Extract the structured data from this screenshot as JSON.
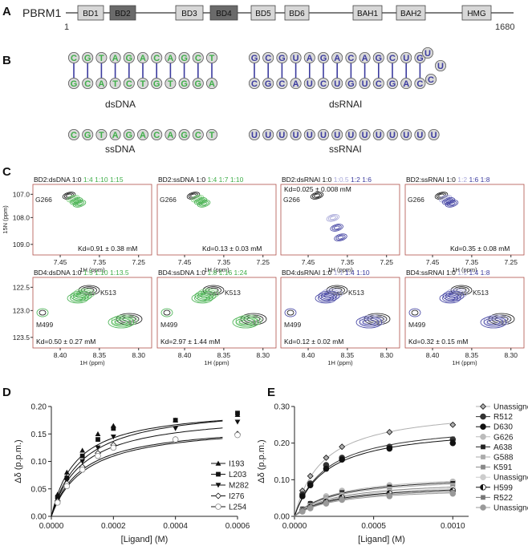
{
  "colors": {
    "domain_light": "#d7d7d7",
    "domain_dark": "#6a6a6a",
    "dna_green": "#3fae49",
    "rna_blue": "#3b3b9e",
    "rna_light": "#a6a6d8",
    "nt_fill": "#d9d9d9",
    "frame_red": "#b0504a"
  },
  "panel_labels": [
    "A",
    "B",
    "C",
    "D",
    "E"
  ],
  "panelA": {
    "protein": "PBRM1",
    "start": "1",
    "end": "1680",
    "domains": [
      {
        "label": "BD1",
        "dark": false
      },
      {
        "label": "BD2",
        "dark": true
      },
      {
        "label": "BD3",
        "dark": false
      },
      {
        "label": "BD4",
        "dark": true
      },
      {
        "label": "BD5",
        "dark": false
      },
      {
        "label": "BD6",
        "dark": false
      },
      {
        "label": "BAH1",
        "dark": false
      },
      {
        "label": "BAH2",
        "dark": false
      },
      {
        "label": "HMG",
        "dark": false
      }
    ]
  },
  "panelB": {
    "dsDNA_top": [
      "C",
      "G",
      "T",
      "A",
      "G",
      "A",
      "C",
      "A",
      "G",
      "C",
      "T"
    ],
    "dsDNA_bottom": [
      "G",
      "C",
      "A",
      "T",
      "C",
      "T",
      "G",
      "T",
      "G",
      "G",
      "A"
    ],
    "dsRNA_top": [
      "G",
      "C",
      "G",
      "U",
      "A",
      "G",
      "A",
      "C",
      "A",
      "G",
      "C",
      "U",
      "G"
    ],
    "dsRNA_bottom": [
      "C",
      "G",
      "C",
      "A",
      "U",
      "C",
      "U",
      "G",
      "U",
      "C",
      "G",
      "A",
      "C"
    ],
    "loop": [
      "U",
      "U",
      "C"
    ],
    "ssDNA": [
      "C",
      "G",
      "T",
      "A",
      "G",
      "A",
      "C",
      "A",
      "G",
      "C",
      "T"
    ],
    "ssRNA": [
      "U",
      "U",
      "U",
      "U",
      "U",
      "U",
      "U",
      "U",
      "U",
      "U",
      "U",
      "U",
      "U",
      "U"
    ],
    "label_dsDNA": "dsDNA",
    "label_dsRNAI": "dsRNAI",
    "label_ssDNA": "ssDNA",
    "label_ssRNAI": "ssRNAI"
  },
  "panelC": {
    "row1": {
      "ylabel": "15N (ppm)",
      "yticks": [
        "107.0",
        "108.0",
        "109.0"
      ],
      "xticks": [
        "7.45",
        "7.35",
        "7.25"
      ],
      "xlabel": "1H (ppm)",
      "peak": "G266",
      "spectra": [
        {
          "title": "BD2:dsDNA",
          "ratios": [
            "1:0",
            "1:4",
            "1:10",
            "1:15"
          ],
          "kd": "Kd=0.91 ± 0.38 mM",
          "kind": "dna"
        },
        {
          "title": "BD2:ssDNA",
          "ratios": [
            "1:0",
            "1:4",
            "1:7",
            "1:10"
          ],
          "kd": "Kd=0.13 ± 0.03 mM",
          "kind": "dna"
        },
        {
          "title": "BD2:dsRNAI",
          "ratios": [
            "1:0",
            "1:0.5",
            "1:2",
            "1:6"
          ],
          "kd": "Kd=0.025 ± 0.008 mM",
          "kind": "rna"
        },
        {
          "title": "BD2:ssRNAI",
          "ratios": [
            "1:0",
            "1:2",
            "1:6",
            "1:8"
          ],
          "kd": "Kd=0.35 ± 0.08 mM",
          "kind": "rna"
        }
      ]
    },
    "row2": {
      "yticks": [
        "122.5",
        "123.0",
        "123.5"
      ],
      "xticks": [
        "8.40",
        "8.35",
        "8.30"
      ],
      "xlabel": "1H (ppm)",
      "peak1": "K513",
      "peak2": "M499",
      "spectra": [
        {
          "title": "BD4:dsDNA",
          "ratios": [
            "1:0",
            "1:5",
            "1:10",
            "1:13.5"
          ],
          "kd": "Kd=0.50 ± 0.27 mM",
          "kind": "dna"
        },
        {
          "title": "BD4:ssDNA",
          "ratios": [
            "1:0",
            "1:8",
            "1:16",
            "1:24"
          ],
          "kd": "Kd=2.97 ± 1.44 mM",
          "kind": "dna"
        },
        {
          "title": "BD4:dsRNAI",
          "ratios": [
            "1:0",
            "1:1",
            "1:4",
            "1:10"
          ],
          "kd": "Kd=0.12 ± 0.02 mM",
          "kind": "rna"
        },
        {
          "title": "BD4:ssRNAI",
          "ratios": [
            "1:0",
            "1:1",
            "1:4",
            "1:8"
          ],
          "kd": "Kd=0.32 ± 0.15 mM",
          "kind": "rna"
        }
      ]
    }
  },
  "chart_data": [
    {
      "type": "scatter",
      "panel": "D",
      "xlabel": "[Ligand] (M)",
      "ylabel": "Δδ (p.p.m.)",
      "xlim": [
        0,
        0.0006
      ],
      "ylim": [
        0,
        0.2
      ],
      "xticks": [
        "0.0000",
        "0.0002",
        "0.0004",
        "0.0006"
      ],
      "yticks": [
        "0.00",
        "0.05",
        "0.10",
        "0.15",
        "0.20"
      ],
      "x": [
        2e-05,
        5e-05,
        0.0001,
        0.00015,
        0.0002,
        0.0004,
        0.0006
      ],
      "series": [
        {
          "name": "I193",
          "marker": "triangle-up",
          "dmax": 0.2,
          "kd": 8e-05,
          "values": [
            0.04,
            0.08,
            0.12,
            0.15,
            0.165,
            0.175,
            0.185
          ]
        },
        {
          "name": "L203",
          "marker": "square",
          "dmax": 0.205,
          "kd": 0.0001,
          "values": [
            0.035,
            0.07,
            0.11,
            0.14,
            0.16,
            0.175,
            0.188
          ]
        },
        {
          "name": "M282",
          "marker": "triangle-down",
          "dmax": 0.19,
          "kd": 0.0001,
          "values": [
            0.03,
            0.065,
            0.1,
            0.125,
            0.145,
            0.16,
            0.172
          ]
        },
        {
          "name": "I276",
          "marker": "diamond",
          "dmax": 0.17,
          "kd": 0.0001,
          "values": [
            0.028,
            0.06,
            0.09,
            0.115,
            0.13,
            0.14,
            0.15
          ]
        },
        {
          "name": "L254",
          "marker": "circle",
          "dmax": 0.17,
          "kd": 0.00011,
          "values": [
            0.025,
            0.055,
            0.085,
            0.11,
            0.125,
            0.14,
            0.148
          ]
        }
      ]
    },
    {
      "type": "scatter",
      "panel": "E",
      "xlabel": "[Ligand] (M)",
      "ylabel": "Δδ (p.p.m.)",
      "xlim": [
        0,
        0.0011
      ],
      "ylim": [
        0,
        0.3
      ],
      "xticks": [
        "0.0000",
        "0.0005",
        "0.0010"
      ],
      "yticks": [
        "0.00",
        "0.10",
        "0.20",
        "0.30"
      ],
      "x": [
        5e-05,
        0.0001,
        0.0002,
        0.0003,
        0.0006,
        0.001
      ],
      "series": [
        {
          "name": "Unassigned",
          "marker": "diamond",
          "color": "#b0b0b0",
          "dmax": 0.3,
          "kd": 0.00018,
          "values": [
            0.07,
            0.11,
            0.16,
            0.19,
            0.23,
            0.25
          ]
        },
        {
          "name": "R512",
          "marker": "circle",
          "color": "#333333",
          "dmax": 0.26,
          "kd": 0.0002,
          "values": [
            0.06,
            0.09,
            0.14,
            0.16,
            0.19,
            0.21
          ]
        },
        {
          "name": "D630",
          "marker": "circle",
          "color": "#111111",
          "dmax": 0.25,
          "kd": 0.0002,
          "values": [
            0.055,
            0.085,
            0.13,
            0.155,
            0.185,
            0.2
          ]
        },
        {
          "name": "G626",
          "marker": "circle",
          "color": "#bbbbbb",
          "dmax": 0.12,
          "kd": 0.00025,
          "values": [
            0.02,
            0.035,
            0.055,
            0.07,
            0.085,
            0.095
          ]
        },
        {
          "name": "A638",
          "marker": "square",
          "color": "#222222",
          "dmax": 0.115,
          "kd": 0.00025,
          "values": [
            0.02,
            0.035,
            0.05,
            0.065,
            0.08,
            0.09
          ]
        },
        {
          "name": "G588",
          "marker": "square",
          "color": "#aaaaaa",
          "dmax": 0.11,
          "kd": 0.00025,
          "values": [
            0.018,
            0.03,
            0.05,
            0.06,
            0.075,
            0.085
          ]
        },
        {
          "name": "K591",
          "marker": "square",
          "color": "#888888",
          "dmax": 0.1,
          "kd": 0.00025,
          "values": [
            0.017,
            0.03,
            0.045,
            0.058,
            0.07,
            0.08
          ]
        },
        {
          "name": "Unassigned",
          "marker": "circle",
          "color": "#cccccc",
          "dmax": 0.095,
          "kd": 0.00025,
          "values": [
            0.016,
            0.028,
            0.043,
            0.055,
            0.066,
            0.075
          ]
        },
        {
          "name": "H599",
          "marker": "half-circle",
          "color": "#111111",
          "dmax": 0.09,
          "kd": 0.00025,
          "values": [
            0.015,
            0.026,
            0.04,
            0.052,
            0.063,
            0.07
          ]
        },
        {
          "name": "R522",
          "marker": "square",
          "color": "#777777",
          "dmax": 0.085,
          "kd": 0.00025,
          "values": [
            0.014,
            0.024,
            0.038,
            0.048,
            0.058,
            0.066
          ]
        },
        {
          "name": "Unassigned",
          "marker": "circle",
          "color": "#999999",
          "dmax": 0.08,
          "kd": 0.00025,
          "values": [
            0.013,
            0.022,
            0.035,
            0.045,
            0.055,
            0.062
          ]
        }
      ]
    }
  ]
}
